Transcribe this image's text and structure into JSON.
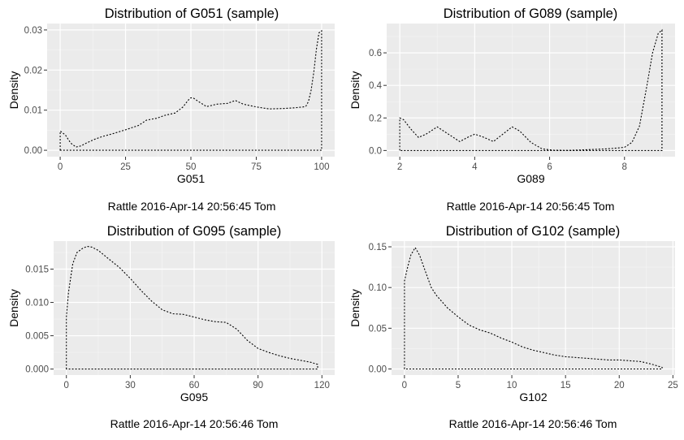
{
  "chart_data": [
    {
      "type": "line",
      "title": "Distribution of G051 (sample)",
      "xlabel": "G051",
      "ylabel": "Density",
      "caption": "Rattle 2016-Apr-14 20:56:45 Tom",
      "xlim": [
        -5,
        105
      ],
      "ylim": [
        -0.0016,
        0.0316
      ],
      "x_ticks": [
        0,
        25,
        50,
        75,
        100
      ],
      "x_tick_labels": [
        "0",
        "25",
        "50",
        "75",
        "100"
      ],
      "y_ticks": [
        0,
        0.01,
        0.02,
        0.03
      ],
      "y_tick_labels": [
        "0.00",
        "0.01",
        "0.02",
        "0.03"
      ],
      "grid": true,
      "series": [
        {
          "x": [
            0,
            2,
            4,
            6,
            8,
            10,
            13,
            16,
            20,
            25,
            30,
            33,
            37,
            40,
            44,
            47,
            49,
            50,
            51,
            53,
            56,
            60,
            64,
            67,
            70,
            75,
            80,
            85,
            90,
            93,
            94,
            95,
            96,
            97,
            98,
            99,
            100
          ],
          "y": [
            0.0048,
            0.0038,
            0.0018,
            0.0008,
            0.0011,
            0.0018,
            0.0027,
            0.0034,
            0.0041,
            0.0051,
            0.0062,
            0.0075,
            0.008,
            0.0087,
            0.0093,
            0.0108,
            0.0125,
            0.0131,
            0.013,
            0.0121,
            0.0109,
            0.0115,
            0.0117,
            0.0124,
            0.0115,
            0.0108,
            0.0103,
            0.0104,
            0.0106,
            0.0108,
            0.011,
            0.0122,
            0.015,
            0.0195,
            0.0252,
            0.0293,
            0.0298
          ]
        }
      ]
    },
    {
      "type": "line",
      "title": "Distribution of G089 (sample)",
      "xlabel": "G089",
      "ylabel": "Density",
      "caption": "Rattle 2016-Apr-14 20:56:45 Tom",
      "xlim": [
        1.65,
        9.35
      ],
      "ylim": [
        -0.038,
        0.78
      ],
      "x_ticks": [
        2,
        4,
        6,
        8
      ],
      "x_tick_labels": [
        "2",
        "4",
        "6",
        "8"
      ],
      "y_ticks": [
        0,
        0.2,
        0.4,
        0.6
      ],
      "y_tick_labels": [
        "0.0",
        "0.2",
        "0.4",
        "0.6"
      ],
      "grid": true,
      "series": [
        {
          "x": [
            2,
            2.1,
            2.3,
            2.5,
            2.7,
            3,
            3.3,
            3.6,
            3.85,
            4,
            4.2,
            4.5,
            4.75,
            5,
            5.2,
            5.5,
            5.8,
            6.1,
            6.5,
            7,
            7.5,
            7.8,
            8,
            8.2,
            8.4,
            8.6,
            8.75,
            8.9,
            9
          ],
          "y": [
            0.2,
            0.19,
            0.13,
            0.08,
            0.1,
            0.145,
            0.1,
            0.055,
            0.085,
            0.1,
            0.085,
            0.055,
            0.1,
            0.145,
            0.12,
            0.05,
            0.01,
            0.002,
            0.001,
            0.005,
            0.01,
            0.015,
            0.02,
            0.05,
            0.15,
            0.4,
            0.6,
            0.72,
            0.74
          ]
        }
      ]
    },
    {
      "type": "line",
      "title": "Distribution of G095 (sample)",
      "xlabel": "G095",
      "ylabel": "Density",
      "caption": "Rattle 2016-Apr-14 20:56:46 Tom",
      "xlim": [
        -6,
        126
      ],
      "ylim": [
        -0.0009,
        0.0192
      ],
      "x_ticks": [
        0,
        30,
        60,
        90,
        120
      ],
      "x_tick_labels": [
        "0",
        "30",
        "60",
        "90",
        "120"
      ],
      "y_ticks": [
        0,
        0.005,
        0.01,
        0.015
      ],
      "y_tick_labels": [
        "0.000",
        "0.005",
        "0.010",
        "0.015"
      ],
      "grid": true,
      "series": [
        {
          "x": [
            0,
            1,
            3,
            5,
            8,
            10,
            12,
            15,
            20,
            25,
            30,
            35,
            40,
            45,
            50,
            55,
            60,
            65,
            70,
            75,
            80,
            85,
            90,
            95,
            100,
            105,
            110,
            115,
            118
          ],
          "y": [
            0.0078,
            0.0115,
            0.0158,
            0.0175,
            0.0182,
            0.0184,
            0.0183,
            0.0178,
            0.0165,
            0.0152,
            0.0136,
            0.0118,
            0.0102,
            0.0089,
            0.0083,
            0.0082,
            0.0078,
            0.0074,
            0.0071,
            0.007,
            0.006,
            0.0043,
            0.0031,
            0.0025,
            0.002,
            0.0016,
            0.0013,
            0.001,
            0.0007
          ]
        }
      ]
    },
    {
      "type": "line",
      "title": "Distribution of G102 (sample)",
      "xlabel": "G102",
      "ylabel": "Density",
      "caption": "Rattle 2016-Apr-14 20:56:46 Tom",
      "xlim": [
        -1.2,
        25.2
      ],
      "ylim": [
        -0.0075,
        0.157
      ],
      "x_ticks": [
        0,
        5,
        10,
        15,
        20,
        25
      ],
      "x_tick_labels": [
        "0",
        "5",
        "10",
        "15",
        "20",
        "25"
      ],
      "y_ticks": [
        0,
        0.05,
        0.1,
        0.15
      ],
      "y_tick_labels": [
        "0.00",
        "0.05",
        "0.10",
        "0.15"
      ],
      "grid": true,
      "series": [
        {
          "x": [
            0,
            0.3,
            0.6,
            1,
            1.4,
            2,
            2.5,
            3,
            4,
            5,
            6,
            7,
            8,
            9,
            10,
            11,
            12,
            13,
            14,
            15,
            16,
            17,
            18,
            19,
            20,
            21,
            22,
            23,
            24
          ],
          "y": [
            0.108,
            0.125,
            0.14,
            0.149,
            0.14,
            0.118,
            0.1,
            0.09,
            0.075,
            0.064,
            0.054,
            0.048,
            0.044,
            0.038,
            0.033,
            0.027,
            0.023,
            0.02,
            0.017,
            0.015,
            0.014,
            0.013,
            0.012,
            0.011,
            0.011,
            0.01,
            0.009,
            0.006,
            0.002
          ]
        }
      ]
    }
  ],
  "colors": {
    "panel_background": "#ebebeb",
    "grid_major": "#ffffff",
    "line": "#000000",
    "tick_text": "#4d4d4d"
  }
}
